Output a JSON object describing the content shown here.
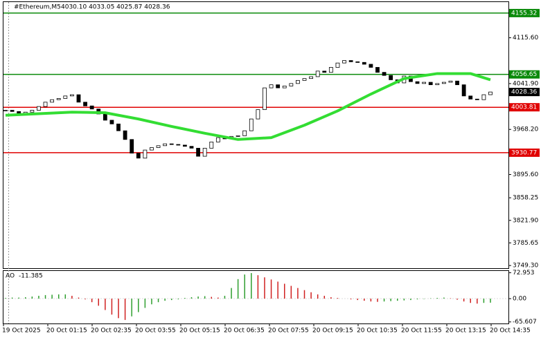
{
  "chart_data": {
    "type": "candlestick",
    "title": "#Ethereum,M5",
    "ohlc_text": "4030.10 4033.05 4025.87 4028.36",
    "x_labels": [
      "19 Oct 2025",
      "20 Oct 01:15",
      "20 Oct 02:35",
      "20 Oct 03:55",
      "20 Oct 05:15",
      "20 Oct 06:35",
      "20 Oct 07:55",
      "20 Oct 09:15",
      "20 Oct 10:35",
      "20 Oct 11:55",
      "20 Oct 13:15",
      "20 Oct 14:35"
    ],
    "close": [
      3999,
      3997,
      3994,
      3996,
      3999,
      4005,
      4012,
      4016,
      4018,
      4022,
      4024,
      4012,
      4006,
      4001,
      3993,
      3983,
      3977,
      3966,
      3952,
      3930,
      3922,
      3935,
      3939,
      3942,
      3945,
      3944,
      3943,
      3941,
      3938,
      3925,
      3938,
      3948,
      3955,
      3953,
      3957,
      3958,
      3966,
      3985,
      4000,
      4035,
      4040,
      4035,
      4038,
      4042,
      4047,
      4050,
      4053,
      4062,
      4060,
      4068,
      4075,
      4079,
      4077,
      4076,
      4073,
      4068,
      4060,
      4055,
      4048,
      4043,
      4054,
      4045,
      4042,
      4044,
      4040,
      4042,
      4044,
      4046,
      4040,
      4022,
      4017,
      4016,
      4024,
      4028.36
    ],
    "ma": {
      "color": "#33dd33",
      "x": [
        0,
        10,
        15,
        20,
        25,
        30,
        35,
        40,
        45,
        50,
        55,
        60,
        65,
        70,
        73
      ],
      "values": [
        3991,
        3996,
        3995,
        3985,
        3973,
        3962,
        3952,
        3955,
        3975,
        3998,
        4025,
        4050,
        4058,
        4058,
        4048
      ]
    },
    "levels": [
      {
        "value": 4155.32,
        "color": "#0a8a0a"
      },
      {
        "value": 4056.65,
        "color": "#0a8a0a"
      },
      {
        "value": 4003.81,
        "color": "#e00000"
      },
      {
        "value": 3930.77,
        "color": "#e00000"
      }
    ],
    "current_price": 4028.36,
    "ylim": [
      3745,
      4173
    ],
    "yticks": [
      {
        "value": 4115.6,
        "label": "4115.60"
      },
      {
        "value": 4041.9,
        "label": "4041.90"
      },
      {
        "value": 3968.2,
        "label": "3968.20"
      },
      {
        "value": 3895.6,
        "label": "3895.60"
      },
      3858.25,
      {
        "value": 3821.9,
        "label": "3821.90"
      },
      3785.65,
      {
        "value": 3749.3,
        "label": "3749.30"
      }
    ],
    "ao": {
      "name": "AO",
      "current": -11.385,
      "up_color": "#2e9e2e",
      "down_color": "#d02020",
      "ylim": [
        -70,
        78
      ],
      "yticks": [
        72.953,
        {
          "value": 0,
          "label": "0.00"
        },
        -65.607
      ],
      "values": [
        2,
        3,
        3,
        4,
        6,
        8,
        10,
        11,
        12,
        12,
        8,
        3,
        -2,
        -10,
        -20,
        -32,
        -45,
        -55,
        -60,
        -50,
        -38,
        -26,
        -16,
        -10,
        -6,
        -4,
        -2,
        2,
        4,
        6,
        7,
        5,
        3,
        8,
        30,
        55,
        68,
        72,
        66,
        60,
        54,
        48,
        42,
        36,
        30,
        24,
        18,
        12,
        8,
        4,
        2,
        0,
        -2,
        -4,
        -6,
        -8,
        -9,
        -8,
        -7,
        -6,
        -5,
        -4,
        -2,
        -1,
        1,
        2,
        3,
        1,
        -3,
        -8,
        -12,
        -14,
        -12,
        -11.385
      ]
    }
  }
}
